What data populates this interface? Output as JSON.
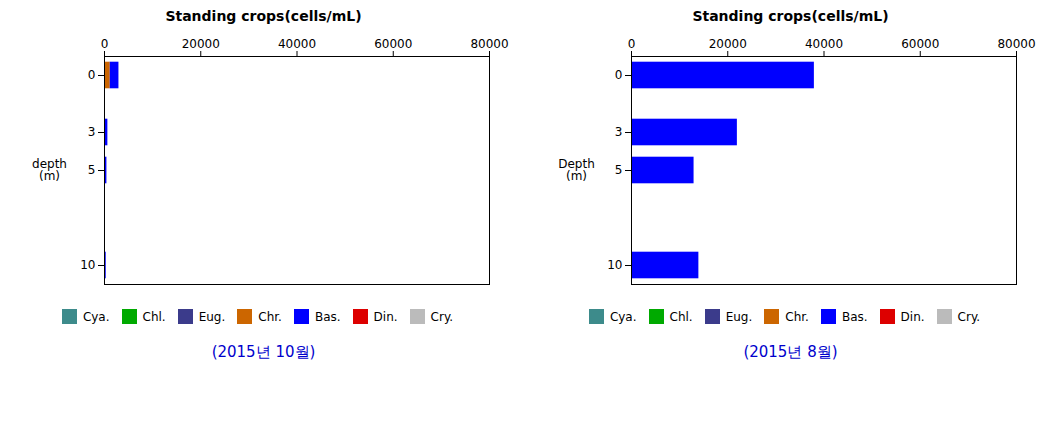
{
  "chart_data": [
    {
      "type": "bar",
      "orientation": "horizontal",
      "stacked": true,
      "title": "Standing crops(cells/mL)",
      "ylabel": "depth\n(m)",
      "categories": [
        0,
        3,
        5,
        10
      ],
      "series": [
        {
          "name": "Cya.",
          "color": "#3d8b8b",
          "values": [
            0,
            0,
            0,
            0
          ]
        },
        {
          "name": "Chl.",
          "color": "#00aa00",
          "values": [
            0,
            0,
            0,
            0
          ]
        },
        {
          "name": "Eug.",
          "color": "#3b3b8b",
          "values": [
            0,
            0,
            0,
            0
          ]
        },
        {
          "name": "Chr.",
          "color": "#cc6600",
          "values": [
            1200,
            150,
            150,
            80
          ]
        },
        {
          "name": "Bas.",
          "color": "#0000ff",
          "values": [
            1800,
            550,
            350,
            280
          ]
        },
        {
          "name": "Din.",
          "color": "#dd0000",
          "values": [
            0,
            0,
            0,
            0
          ]
        },
        {
          "name": "Cry.",
          "color": "#bbbbbb",
          "values": [
            0,
            0,
            0,
            0
          ]
        }
      ],
      "xlim": [
        0,
        80000
      ],
      "xticks": [
        0,
        20000,
        40000,
        60000,
        80000
      ],
      "ylim": [
        11,
        -1
      ],
      "yticks": [
        0,
        3,
        5,
        10
      ],
      "legend": "bottom",
      "caption": "(2015년 10월)"
    },
    {
      "type": "bar",
      "orientation": "horizontal",
      "stacked": true,
      "title": "Standing crops(cells/mL)",
      "ylabel": "Depth\n(m)",
      "categories": [
        0,
        3,
        5,
        10
      ],
      "series": [
        {
          "name": "Cya.",
          "color": "#3d8b8b",
          "values": [
            0,
            0,
            0,
            0
          ]
        },
        {
          "name": "Chl.",
          "color": "#00aa00",
          "values": [
            0,
            0,
            0,
            0
          ]
        },
        {
          "name": "Eug.",
          "color": "#3b3b8b",
          "values": [
            0,
            0,
            0,
            0
          ]
        },
        {
          "name": "Chr.",
          "color": "#cc6600",
          "values": [
            0,
            0,
            0,
            0
          ]
        },
        {
          "name": "Bas.",
          "color": "#0000ff",
          "values": [
            38000,
            22000,
            13000,
            14000
          ]
        },
        {
          "name": "Din.",
          "color": "#dd0000",
          "values": [
            0,
            0,
            0,
            0
          ]
        },
        {
          "name": "Cry.",
          "color": "#bbbbbb",
          "values": [
            0,
            0,
            0,
            0
          ]
        }
      ],
      "xlim": [
        0,
        80000
      ],
      "xticks": [
        0,
        20000,
        40000,
        60000,
        80000
      ],
      "ylim": [
        11,
        -1
      ],
      "yticks": [
        0,
        3,
        5,
        10
      ],
      "legend": "bottom",
      "caption": "(2015년 8월)"
    }
  ]
}
